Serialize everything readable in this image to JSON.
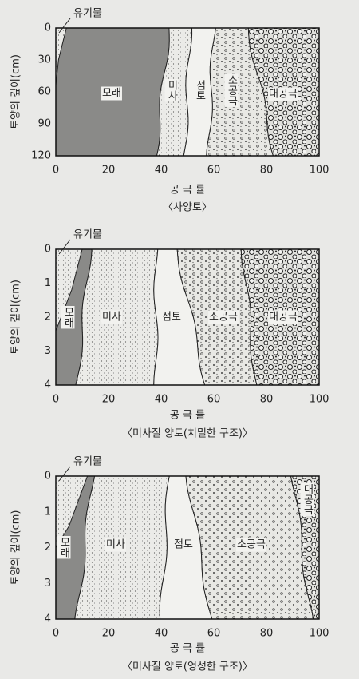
{
  "panels": [
    {
      "title": "〈사양토〉",
      "x_label": "공 극 률",
      "y_label": "토양의 깊이(cm)",
      "organic_label": "유기물",
      "yticks": [
        "0",
        "30",
        "60",
        "90",
        "120"
      ],
      "xticks": [
        "0",
        "20",
        "40",
        "60",
        "80",
        "100"
      ],
      "regions": [
        "모래",
        "미사",
        "점토",
        "소공극",
        "대공극"
      ]
    },
    {
      "title": "〈미사질 양토(치밀한 구조)〉",
      "x_label": "공 극 률",
      "y_label": "토양의 깊이(cm)",
      "organic_label": "유기물",
      "yticks": [
        "0",
        "1",
        "2",
        "3",
        "4"
      ],
      "xticks": [
        "0",
        "20",
        "40",
        "60",
        "80",
        "100"
      ],
      "regions": [
        "모래",
        "미사",
        "점토",
        "소공극",
        "대공극"
      ]
    },
    {
      "title": "〈미사질 양토(엉성한 구조)〉",
      "x_label": "공 극 률",
      "y_label": "토양의 깊이(cm)",
      "organic_label": "유기물",
      "yticks": [
        "0",
        "1",
        "2",
        "3",
        "4"
      ],
      "xticks": [
        "0",
        "20",
        "40",
        "60",
        "80",
        "100"
      ],
      "regions": [
        "모래",
        "미사",
        "점토",
        "소공극",
        "대공극"
      ]
    }
  ]
}
